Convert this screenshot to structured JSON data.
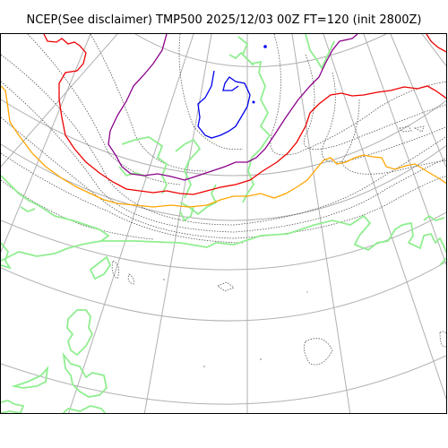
{
  "title": "NCEP(See disclaimer) TMP500 2025/12/03 00Z FT=120 (init 2800Z)",
  "map": {
    "colors": {
      "graticule": "#b0b0b0",
      "coastline": "#90ee90",
      "isotherm": "#444444",
      "contour_blue": "#0000ee",
      "contour_purple": "#8b008b",
      "contour_red": "#ee0000",
      "contour_orange": "#ffa500"
    }
  }
}
